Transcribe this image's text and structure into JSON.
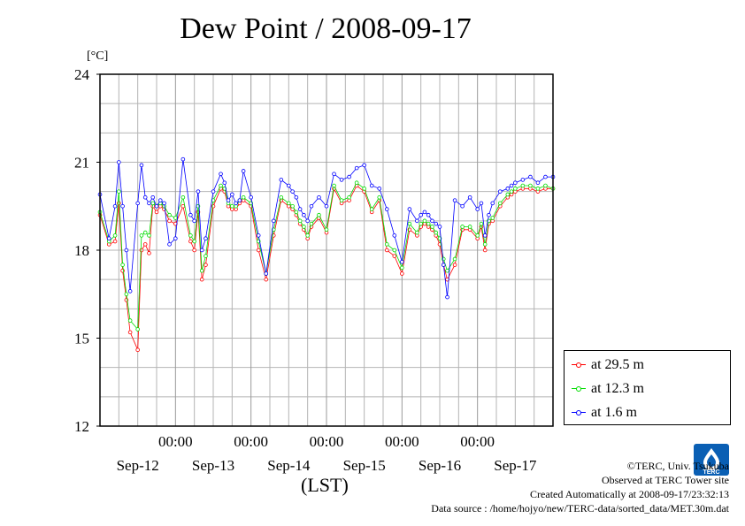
{
  "title": "Dew Point / 2008-09-17",
  "y_unit": "[°C]",
  "lst_label": "(LST)",
  "legend": [
    {
      "label": "at 29.5 m",
      "color": "#ff0000"
    },
    {
      "label": "at 12.3 m",
      "color": "#00dd00"
    },
    {
      "label": "at 1.6 m",
      "color": "#0000ff"
    }
  ],
  "credits": {
    "line1": "©TERC, Univ. Tsukuba",
    "line2": "Observed at TERC Tower site",
    "line3": "Created Automatically at 2008-09-17/23:32:13",
    "line4": "Data source : /home/hojyo/new/TERC-data/sorted_data/MET.30m.dat"
  },
  "logo_text": "TERC",
  "chart_data": {
    "type": "line",
    "title": "Dew Point / 2008-09-17",
    "ylabel": "[°C]",
    "xlabel": "(LST)",
    "ylim": [
      12,
      24
    ],
    "yticks": [
      12,
      15,
      18,
      21,
      24
    ],
    "xlim": [
      0,
      6
    ],
    "time_ticks": [
      1,
      2,
      3,
      4,
      5
    ],
    "time_tick_label": "00:00",
    "date_labels": [
      "Sep-12",
      "Sep-13",
      "Sep-14",
      "Sep-15",
      "Sep-16",
      "Sep-17"
    ],
    "grid": true,
    "legend_position": "bottom-right",
    "series": [
      {
        "name": "at 29.5 m",
        "color": "#ff0000",
        "x": [
          0,
          0.12,
          0.2,
          0.25,
          0.3,
          0.35,
          0.4,
          0.5,
          0.55,
          0.6,
          0.65,
          0.7,
          0.75,
          0.8,
          0.85,
          0.92,
          1.0,
          1.1,
          1.2,
          1.25,
          1.3,
          1.35,
          1.4,
          1.5,
          1.6,
          1.65,
          1.7,
          1.75,
          1.8,
          1.85,
          1.9,
          2.0,
          2.1,
          2.2,
          2.3,
          2.4,
          2.5,
          2.55,
          2.6,
          2.65,
          2.7,
          2.75,
          2.8,
          2.9,
          3.0,
          3.1,
          3.2,
          3.3,
          3.4,
          3.5,
          3.6,
          3.7,
          3.8,
          3.9,
          4.0,
          4.1,
          4.2,
          4.25,
          4.3,
          4.35,
          4.4,
          4.45,
          4.5,
          4.55,
          4.6,
          4.7,
          4.8,
          4.9,
          5.0,
          5.05,
          5.1,
          5.15,
          5.2,
          5.3,
          5.4,
          5.45,
          5.5,
          5.6,
          5.7,
          5.8,
          5.9,
          6.0
        ],
        "values": [
          19.2,
          18.2,
          18.3,
          19.6,
          17.3,
          16.3,
          15.2,
          14.6,
          18.0,
          18.2,
          17.9,
          19.5,
          19.3,
          19.5,
          19.4,
          19.0,
          18.9,
          19.5,
          18.3,
          18.0,
          19.3,
          17.0,
          17.5,
          19.5,
          20.1,
          20.0,
          19.5,
          19.4,
          19.4,
          19.6,
          19.7,
          19.5,
          18.0,
          17.0,
          18.5,
          19.7,
          19.5,
          19.4,
          19.2,
          18.9,
          18.7,
          18.4,
          18.8,
          19.1,
          18.6,
          20.1,
          19.6,
          19.7,
          20.2,
          20.0,
          19.3,
          19.7,
          18.0,
          17.8,
          17.2,
          18.7,
          18.5,
          18.8,
          18.9,
          18.8,
          18.7,
          18.5,
          18.2,
          17.5,
          17.0,
          17.5,
          18.7,
          18.7,
          18.4,
          18.8,
          18.0,
          18.9,
          19.0,
          19.5,
          19.8,
          19.9,
          20.0,
          20.1,
          20.1,
          20.0,
          20.1,
          20.1
        ]
      },
      {
        "name": "at 12.3 m",
        "color": "#00dd00",
        "x": [
          0,
          0.12,
          0.2,
          0.25,
          0.3,
          0.35,
          0.4,
          0.5,
          0.55,
          0.6,
          0.65,
          0.7,
          0.75,
          0.8,
          0.85,
          0.92,
          1.0,
          1.1,
          1.2,
          1.25,
          1.3,
          1.35,
          1.4,
          1.5,
          1.6,
          1.65,
          1.7,
          1.75,
          1.8,
          1.85,
          1.9,
          2.0,
          2.1,
          2.2,
          2.3,
          2.4,
          2.5,
          2.55,
          2.6,
          2.65,
          2.7,
          2.75,
          2.8,
          2.9,
          3.0,
          3.1,
          3.2,
          3.3,
          3.4,
          3.5,
          3.6,
          3.7,
          3.8,
          3.9,
          4.0,
          4.1,
          4.2,
          4.25,
          4.3,
          4.35,
          4.4,
          4.45,
          4.5,
          4.55,
          4.6,
          4.7,
          4.8,
          4.9,
          5.0,
          5.05,
          5.1,
          5.15,
          5.2,
          5.3,
          5.4,
          5.45,
          5.5,
          5.6,
          5.7,
          5.8,
          5.9,
          6.0
        ],
        "values": [
          19.3,
          18.3,
          18.5,
          20.0,
          17.5,
          16.5,
          15.6,
          15.3,
          18.5,
          18.6,
          18.5,
          19.6,
          19.5,
          19.6,
          19.5,
          19.2,
          19.1,
          19.8,
          18.5,
          18.3,
          19.5,
          17.3,
          17.8,
          19.7,
          20.2,
          20.1,
          19.6,
          19.5,
          19.5,
          19.7,
          19.8,
          19.6,
          18.3,
          17.2,
          18.7,
          19.8,
          19.6,
          19.5,
          19.3,
          19.0,
          18.8,
          18.5,
          18.9,
          19.2,
          18.7,
          20.2,
          19.7,
          19.8,
          20.3,
          20.1,
          19.4,
          19.8,
          18.2,
          18.0,
          17.4,
          18.9,
          18.6,
          18.9,
          19.0,
          18.9,
          18.8,
          18.6,
          18.4,
          17.7,
          17.3,
          17.7,
          18.8,
          18.8,
          18.5,
          18.9,
          18.2,
          19.0,
          19.1,
          19.6,
          19.9,
          20.0,
          20.1,
          20.2,
          20.2,
          20.1,
          20.2,
          20.1
        ]
      },
      {
        "name": "at 1.6 m",
        "color": "#0000ff",
        "x": [
          0,
          0.12,
          0.2,
          0.25,
          0.3,
          0.35,
          0.4,
          0.5,
          0.55,
          0.6,
          0.65,
          0.7,
          0.75,
          0.8,
          0.85,
          0.92,
          1.0,
          1.1,
          1.2,
          1.25,
          1.3,
          1.35,
          1.4,
          1.5,
          1.6,
          1.65,
          1.7,
          1.75,
          1.8,
          1.85,
          1.9,
          2.0,
          2.1,
          2.2,
          2.3,
          2.4,
          2.5,
          2.55,
          2.6,
          2.65,
          2.7,
          2.75,
          2.8,
          2.9,
          3.0,
          3.1,
          3.2,
          3.3,
          3.4,
          3.5,
          3.6,
          3.7,
          3.8,
          3.9,
          4.0,
          4.1,
          4.2,
          4.25,
          4.3,
          4.35,
          4.4,
          4.45,
          4.5,
          4.55,
          4.6,
          4.7,
          4.8,
          4.9,
          5.0,
          5.05,
          5.1,
          5.15,
          5.2,
          5.3,
          5.4,
          5.45,
          5.5,
          5.6,
          5.7,
          5.8,
          5.9,
          6.0
        ],
        "values": [
          19.9,
          18.4,
          19.5,
          21.0,
          19.5,
          18.0,
          16.6,
          19.6,
          20.9,
          19.8,
          19.6,
          19.8,
          19.5,
          19.7,
          19.6,
          18.2,
          18.4,
          21.1,
          19.2,
          19.0,
          20.0,
          18.0,
          18.4,
          20.0,
          20.6,
          20.3,
          19.7,
          19.9,
          19.6,
          19.7,
          20.7,
          19.8,
          18.5,
          17.2,
          19.0,
          20.4,
          20.2,
          20.0,
          19.8,
          19.4,
          19.2,
          19.0,
          19.5,
          19.8,
          19.5,
          20.6,
          20.4,
          20.5,
          20.8,
          20.9,
          20.2,
          20.1,
          19.4,
          18.5,
          17.6,
          19.4,
          19.0,
          19.2,
          19.3,
          19.2,
          19.0,
          18.9,
          18.8,
          17.5,
          16.4,
          19.7,
          19.5,
          19.8,
          19.4,
          19.6,
          18.5,
          19.2,
          19.6,
          20.0,
          20.1,
          20.2,
          20.3,
          20.4,
          20.5,
          20.3,
          20.5,
          20.5
        ]
      }
    ]
  }
}
